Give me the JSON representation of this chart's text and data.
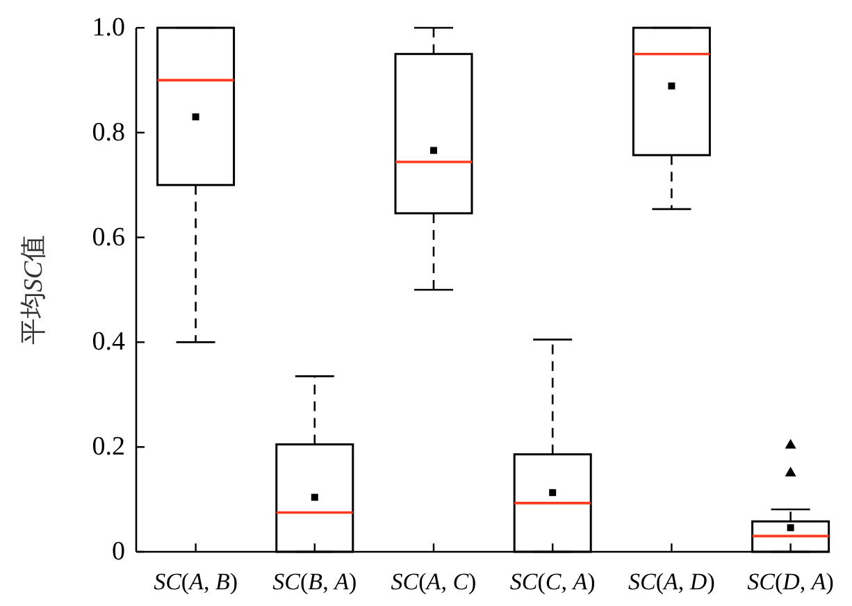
{
  "chart_data": {
    "type": "box",
    "ylabel": "平均SC值",
    "categories": [
      "SC(A, B)",
      "SC(B, A)",
      "SC(A, C)",
      "SC(C, A)",
      "SC(A, D)",
      "SC(D, A)"
    ],
    "boxes": [
      {
        "low": 0.4,
        "q1": 0.7,
        "median": 0.9,
        "q3": 1.0,
        "high": 1.0,
        "mean": 0.83
      },
      {
        "low": 0,
        "q1": 0,
        "median": 0.075,
        "q3": 0.205,
        "high": 0.335,
        "mean": 0.104
      },
      {
        "low": 0.5,
        "q1": 0.646,
        "median": 0.744,
        "q3": 0.95,
        "high": 1.0,
        "mean": 0.766
      },
      {
        "low": 0,
        "q1": 0,
        "median": 0.093,
        "q3": 0.186,
        "high": 0.405,
        "mean": 0.113
      },
      {
        "low": 0.654,
        "q1": 0.757,
        "median": 0.95,
        "q3": 1.0,
        "high": 1.0,
        "mean": 0.889
      },
      {
        "low": 0,
        "q1": 0,
        "median": 0.03,
        "q3": 0.058,
        "high": 0.081,
        "mean": 0.046,
        "outliers": [
          0.152,
          0.205
        ]
      }
    ],
    "ylim": [
      0,
      1
    ],
    "yticks": [
      0,
      0.2,
      0.4,
      0.6,
      0.8,
      {
        "value": 1,
        "label": "1.0"
      }
    ],
    "grid": false
  }
}
